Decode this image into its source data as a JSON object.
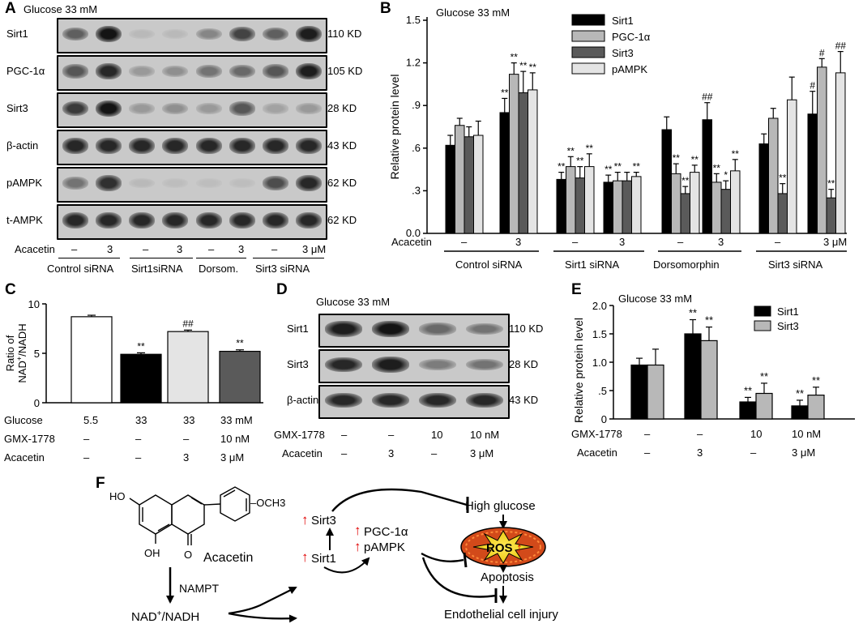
{
  "panelA": {
    "letter": "A",
    "title": "Glucose 33 mM",
    "rows": [
      {
        "protein": "Sirt1",
        "kd": "110 KD"
      },
      {
        "protein": "PGC-1α",
        "kd": "105 KD"
      },
      {
        "protein": "Sirt3",
        "kd": "28 KD"
      },
      {
        "protein": "β-actin",
        "kd": "43 KD"
      },
      {
        "protein": "pAMPK",
        "kd": "62 KD"
      },
      {
        "protein": "t-AMPK",
        "kd": "62 KD"
      }
    ],
    "acacetin_label": "Acacetin",
    "acacetin_values": [
      "–",
      "3",
      "–",
      "3",
      "–",
      "3",
      "–",
      "3 μM"
    ],
    "groups": [
      "Control siRNA",
      "Sirt1siRNA",
      "Dorsom.",
      "Sirt3 siRNA"
    ],
    "band_intensity": [
      [
        0.55,
        0.95,
        0.08,
        0.08,
        0.35,
        0.7,
        0.55,
        0.9
      ],
      [
        0.6,
        0.85,
        0.25,
        0.3,
        0.45,
        0.5,
        0.6,
        0.9
      ],
      [
        0.75,
        0.95,
        0.25,
        0.3,
        0.25,
        0.6,
        0.2,
        0.25
      ],
      [
        0.85,
        0.85,
        0.85,
        0.85,
        0.85,
        0.85,
        0.85,
        0.85
      ],
      [
        0.45,
        0.8,
        0.08,
        0.06,
        0.06,
        0.06,
        0.65,
        0.85
      ],
      [
        0.85,
        0.85,
        0.85,
        0.85,
        0.85,
        0.85,
        0.85,
        0.85
      ]
    ]
  },
  "panelD": {
    "letter": "D",
    "title": "Glucose 33 mM",
    "rows": [
      {
        "protein": "Sirt1",
        "kd": "110 KD"
      },
      {
        "protein": "Sirt3",
        "kd": "28 KD"
      },
      {
        "protein": "β-actin",
        "kd": "43 KD"
      }
    ],
    "gmx_label": "GMX-1778",
    "gmx_values": [
      "–",
      "–",
      "10",
      "10  nM"
    ],
    "acacetin_label": "Acacetin",
    "acacetin_values": [
      "–",
      "3",
      "–",
      "3  μM"
    ],
    "band_intensity": [
      [
        0.9,
        0.95,
        0.5,
        0.45
      ],
      [
        0.85,
        0.9,
        0.4,
        0.45
      ],
      [
        0.85,
        0.85,
        0.85,
        0.85
      ]
    ]
  },
  "panelF": {
    "letter": "F",
    "high_glucose": "High glucose",
    "acacetin": "Acacetin",
    "och3": "–OCH3",
    "ho_top": "HO",
    "oh_bottom": "OH",
    "carbonyl_o": "O",
    "nampt": "NAMPT",
    "nad_main": "NAD",
    "nad_sup": "+",
    "nad_rest": "/NADH",
    "sirt3": "Sirt3",
    "sirt1": "Sirt1",
    "pgc": "PGC-1α",
    "pampk": "pAMPK",
    "ros": "ROS",
    "apoptosis": "Apoptosis",
    "injury": "Endothelial cell injury"
  },
  "chart_data": [
    {
      "id": "B",
      "letter": "B",
      "type": "bar",
      "title": "Glucose 33 mM",
      "ylabel": "Relative protein level",
      "ylim": [
        0,
        1.5
      ],
      "yticks": [
        "0.0",
        ".3",
        ".6",
        ".9",
        "1.2",
        "1.5"
      ],
      "ytick_values": [
        0,
        0.3,
        0.6,
        0.9,
        1.2,
        1.5
      ],
      "row_label": "Acacetin",
      "row_values": [
        "–",
        "3",
        "–",
        "3",
        "–",
        "3",
        "–",
        "3  μM"
      ],
      "groups": [
        "Control siRNA",
        "Sirt1 siRNA",
        "Dorsomorphin",
        "Sirt3 siRNA"
      ],
      "legend_position": "top-right",
      "series": [
        {
          "name": "Sirt1",
          "color": "#000000",
          "values": [
            0.62,
            0.85,
            0.38,
            0.36,
            0.73,
            0.8,
            0.63,
            0.84
          ],
          "errors": [
            0.07,
            0.1,
            0.05,
            0.05,
            0.09,
            0.12,
            0.07,
            0.16
          ],
          "marks": [
            "",
            "**",
            "**",
            "**",
            "",
            "##",
            "",
            "#"
          ]
        },
        {
          "name": "PGC-1α",
          "color": "#b8b8b8",
          "values": [
            0.76,
            1.12,
            0.47,
            0.37,
            0.42,
            0.36,
            0.81,
            1.17
          ],
          "errors": [
            0.05,
            0.08,
            0.07,
            0.06,
            0.07,
            0.06,
            0.07,
            0.06
          ],
          "marks": [
            "",
            "**",
            "**",
            "**",
            "**",
            "**",
            "",
            "#"
          ]
        },
        {
          "name": "Sirt3",
          "color": "#5a5a5a",
          "values": [
            0.68,
            0.99,
            0.39,
            0.37,
            0.28,
            0.31,
            0.28,
            0.25
          ],
          "errors": [
            0.07,
            0.15,
            0.08,
            0.06,
            0.05,
            0.06,
            0.07,
            0.06
          ],
          "marks": [
            "",
            "**",
            "**",
            "",
            "**",
            "*",
            "**",
            "**"
          ]
        },
        {
          "name": "pAMPK",
          "color": "#e4e4e4",
          "values": [
            0.69,
            1.01,
            0.47,
            0.4,
            0.43,
            0.44,
            0.94,
            1.13
          ],
          "errors": [
            0.1,
            0.12,
            0.09,
            0.03,
            0.05,
            0.08,
            0.16,
            0.15
          ],
          "marks": [
            "",
            "**",
            "**",
            "**",
            "**",
            "**",
            "",
            "##"
          ]
        }
      ]
    },
    {
      "id": "C",
      "letter": "C",
      "type": "bar",
      "ylabel": "Ratio of NAD+/NADH",
      "ylabel_line1": "Ratio of",
      "ylabel_line2_main": "NAD",
      "ylabel_line2_sup": "+",
      "ylabel_line2_rest": "/NADH",
      "ylim": [
        0,
        10
      ],
      "yticks": [
        "0",
        "5",
        "10"
      ],
      "ytick_values": [
        0,
        5,
        10
      ],
      "bars": [
        {
          "value": 8.7,
          "error": 0.15,
          "color": "#ffffff",
          "mark": ""
        },
        {
          "value": 4.9,
          "error": 0.15,
          "color": "#000000",
          "mark": "**"
        },
        {
          "value": 7.2,
          "error": 0.15,
          "color": "#e4e4e4",
          "mark": "##"
        },
        {
          "value": 5.2,
          "error": 0.15,
          "color": "#5a5a5a",
          "mark": "**"
        }
      ],
      "rows": [
        {
          "label": "Glucose",
          "values": [
            "5.5",
            "33",
            "33",
            "33 mM"
          ]
        },
        {
          "label": "GMX-1778",
          "values": [
            "–",
            "–",
            "–",
            "10 nM"
          ]
        },
        {
          "label": "Acacetin",
          "values": [
            "–",
            "–",
            "3",
            "3 μM"
          ]
        }
      ]
    },
    {
      "id": "E",
      "letter": "E",
      "type": "bar",
      "title": "Glucose 33 mM",
      "ylabel": "Relative protein level",
      "ylim": [
        0,
        2.0
      ],
      "yticks": [
        "0",
        ".5",
        "1.0",
        "1.5",
        "2.0"
      ],
      "ytick_values": [
        0,
        0.5,
        1.0,
        1.5,
        2.0
      ],
      "legend_position": "top-right",
      "series": [
        {
          "name": "Sirt1",
          "color": "#000000",
          "values": [
            0.95,
            1.5,
            0.3,
            0.23
          ],
          "errors": [
            0.12,
            0.25,
            0.08,
            0.1
          ],
          "marks": [
            "",
            "**",
            "**",
            "**"
          ]
        },
        {
          "name": "Sirt3",
          "color": "#b8b8b8",
          "values": [
            0.95,
            1.38,
            0.45,
            0.42
          ],
          "errors": [
            0.28,
            0.24,
            0.18,
            0.14
          ],
          "marks": [
            "",
            "**",
            "**",
            "**"
          ]
        }
      ],
      "rows": [
        {
          "label": "GMX-1778",
          "values": [
            "–",
            "–",
            "10",
            "10  nM"
          ]
        },
        {
          "label": "Acacetin",
          "values": [
            "–",
            "3",
            "–",
            "3  μM"
          ]
        }
      ]
    }
  ]
}
